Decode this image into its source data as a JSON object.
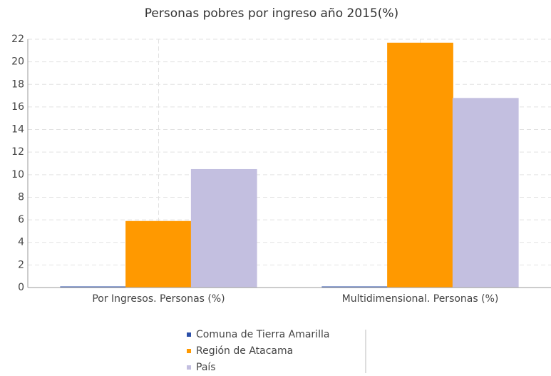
{
  "chart_data": {
    "type": "bar",
    "title": "Personas pobres por ingreso año 2015(%)",
    "categories": [
      "Por Ingresos. Personas (%)",
      "Multidimensional. Personas (%)"
    ],
    "series": [
      {
        "name": "Comuna de Tierra Amarilla",
        "color": "#2b4fa8",
        "values": [
          0,
          0
        ]
      },
      {
        "name": "Región de Atacama",
        "color": "#ff9900",
        "values": [
          5.8,
          21.6
        ]
      },
      {
        "name": "País",
        "color": "#c3bfe0",
        "values": [
          10.4,
          16.7
        ]
      }
    ],
    "ylim": [
      0,
      22
    ],
    "yticks": [
      0,
      2,
      4,
      6,
      8,
      10,
      12,
      14,
      16,
      18,
      20,
      22
    ],
    "grid": true
  }
}
